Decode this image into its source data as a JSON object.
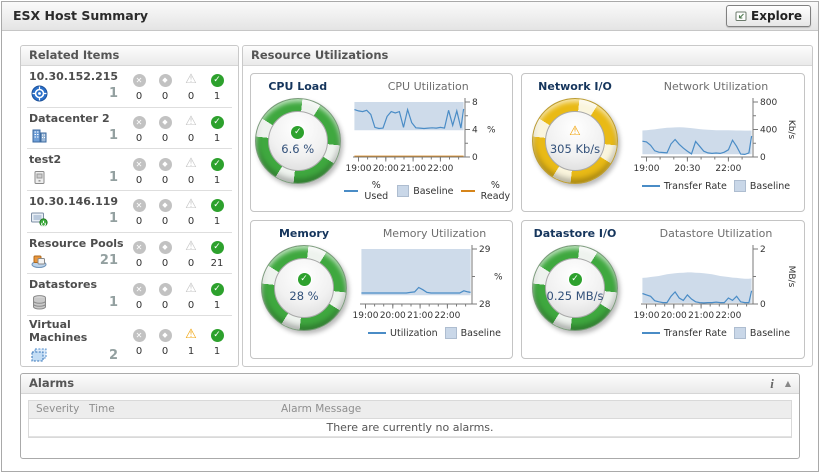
{
  "header": {
    "title": "ESX Host Summary",
    "explore_label": "Explore"
  },
  "icons": {
    "fatal": "✕",
    "critical": "◆",
    "warning": "⚠",
    "normal": "✓",
    "info": "i",
    "collapse": "▲"
  },
  "related_items": {
    "title": "Related Items",
    "items": [
      {
        "label": "10.30.152.215",
        "icon": "vcenter-server-icon",
        "count": "1",
        "fatal": "0",
        "critical": "0",
        "warning": "0",
        "normal": "1"
      },
      {
        "label": "Datacenter 2",
        "icon": "datacenter-icon",
        "count": "1",
        "fatal": "0",
        "critical": "0",
        "warning": "0",
        "normal": "1"
      },
      {
        "label": "test2",
        "icon": "cluster-icon",
        "count": "1",
        "fatal": "0",
        "critical": "0",
        "warning": "0",
        "normal": "1"
      },
      {
        "label": "10.30.146.119",
        "icon": "esx-host-icon",
        "count": "1",
        "fatal": "0",
        "critical": "0",
        "warning": "0",
        "normal": "1"
      },
      {
        "label": "Resource Pools",
        "icon": "resource-pool-icon",
        "count": "21",
        "fatal": "0",
        "critical": "0",
        "warning": "0",
        "normal": "21"
      },
      {
        "label": "Datastores",
        "icon": "datastore-icon",
        "count": "1",
        "fatal": "0",
        "critical": "0",
        "warning": "0",
        "normal": "1"
      },
      {
        "label": "Virtual Machines",
        "icon": "virtual-machine-icon",
        "count": "2",
        "fatal": "0",
        "critical": "0",
        "warning": "1",
        "normal": "1"
      }
    ]
  },
  "resource": {
    "title": "Resource Utilizations",
    "tiles": [
      {
        "title": "CPU Load",
        "gauge_value": "6.6 %",
        "gauge_state": "normal",
        "gauge_color": "#3fa83f"
      },
      {
        "title": "Network I/O",
        "gauge_value": "305 Kb/s",
        "gauge_state": "warning",
        "gauge_color": "#e9ba16"
      },
      {
        "title": "Memory",
        "gauge_value": "28 %",
        "gauge_state": "normal",
        "gauge_color": "#3fa83f"
      },
      {
        "title": "Datastore I/O",
        "gauge_value": "0.25 MB/s",
        "gauge_state": "normal",
        "gauge_color": "#3fa83f"
      }
    ]
  },
  "alarms": {
    "title": "Alarms",
    "columns": [
      "Severity",
      "Time",
      "Alarm Message"
    ],
    "empty_message": "There are currently no alarms."
  },
  "chart_data": [
    {
      "type": "line",
      "title": "CPU Utilization",
      "x_range": [
        18.8,
        22.9
      ],
      "ylim": [
        0,
        8
      ],
      "unit": "%",
      "unit_rotated": false,
      "unit_at": 4,
      "x": [
        18.85,
        19.0,
        19.15,
        19.3,
        19.45,
        19.6,
        19.75,
        19.9,
        20.05,
        20.2,
        20.35,
        20.5,
        20.65,
        20.8,
        20.95,
        21.1,
        21.25,
        21.4,
        21.55,
        21.7,
        21.85,
        22.0,
        22.15,
        22.3,
        22.45,
        22.6,
        22.75,
        22.85
      ],
      "series": [
        {
          "name": "% Used",
          "color": "#4a8cc6",
          "values": [
            6.9,
            6.7,
            6.6,
            6.8,
            6.2,
            4.3,
            4.15,
            4.2,
            5.9,
            6.6,
            6.4,
            6.6,
            4.3,
            6.9,
            5.0,
            4.25,
            4.2,
            4.15,
            4.2,
            4.25,
            4.2,
            4.3,
            4.2,
            6.8,
            4.6,
            6.7,
            4.2,
            7.0
          ]
        },
        {
          "name": "% Ready",
          "color": "#d6851a",
          "values": 0.12
        }
      ],
      "baseline": {
        "label": "Baseline",
        "color": "#c9d7e8",
        "lower": 3.9,
        "upper": 8
      },
      "yticks": [
        {
          "v": 0,
          "label": "0"
        },
        {
          "v": 2,
          "label": ""
        },
        {
          "v": 4,
          "label": "4"
        },
        {
          "v": 6,
          "label": ""
        },
        {
          "v": 8,
          "label": "8"
        }
      ],
      "xticks": [
        {
          "v": 19,
          "label": "19:00"
        },
        {
          "v": 20,
          "label": "20:00"
        },
        {
          "v": 21,
          "label": "21:00"
        },
        {
          "v": 22,
          "label": "22:00"
        }
      ],
      "x_minor_step": 0.33333,
      "legend": [
        {
          "label": "% Used",
          "type": "line",
          "color": "#4a8cc6"
        },
        {
          "label": "Baseline",
          "type": "band",
          "color": "#c9d7e8"
        },
        {
          "label": "% Ready",
          "type": "line",
          "color": "#d6851a"
        }
      ]
    },
    {
      "type": "line",
      "title": "Network Utilization",
      "x_range": [
        18.8,
        22.9
      ],
      "ylim": [
        0,
        800
      ],
      "unit": "Kb/s",
      "unit_rotated": true,
      "x": [
        18.85,
        19.0,
        19.15,
        19.3,
        19.45,
        19.6,
        19.75,
        19.9,
        20.05,
        20.2,
        20.35,
        20.5,
        20.65,
        20.8,
        20.95,
        21.1,
        21.25,
        21.4,
        21.55,
        21.7,
        21.85,
        22.0,
        22.15,
        22.3,
        22.45,
        22.6,
        22.75,
        22.85
      ],
      "series": [
        {
          "name": "Transfer Rate",
          "color": "#4a8cc6",
          "values": [
            230,
            220,
            170,
            90,
            70,
            65,
            60,
            190,
            255,
            185,
            130,
            85,
            45,
            225,
            155,
            85,
            60,
            52,
            58,
            52,
            70,
            105,
            245,
            155,
            42,
            38,
            60,
            305
          ]
        }
      ],
      "baseline": {
        "label": "Baseline",
        "color": "#c9d7e8",
        "lower": 40,
        "upper": [
          385,
          390,
          396,
          402,
          410,
          418,
          424,
          428,
          431,
          432,
          430,
          426,
          420,
          413,
          406,
          400,
          396,
          392,
          390,
          389,
          388,
          388,
          387,
          386,
          385,
          384,
          384,
          386
        ]
      },
      "yticks": [
        {
          "v": 0,
          "label": "0"
        },
        {
          "v": 200,
          "label": ""
        },
        {
          "v": 400,
          "label": "400"
        },
        {
          "v": 600,
          "label": ""
        },
        {
          "v": 800,
          "label": "800"
        }
      ],
      "xticks": [
        {
          "v": 19,
          "label": "19:00"
        },
        {
          "v": 20.5,
          "label": "20:30"
        },
        {
          "v": 22,
          "label": "22:00"
        }
      ],
      "x_minor_step": 0.5,
      "legend": [
        {
          "label": "Transfer Rate",
          "type": "line",
          "color": "#4a8cc6"
        },
        {
          "label": "Baseline",
          "type": "band",
          "color": "#c9d7e8"
        }
      ]
    },
    {
      "type": "line",
      "title": "Memory Utilization",
      "x_range": [
        18.8,
        22.9
      ],
      "ylim": [
        28,
        29
      ],
      "unit": "%",
      "unit_rotated": false,
      "unit_at": 28.5,
      "x": [
        18.85,
        19.0,
        19.15,
        19.3,
        19.45,
        19.6,
        19.75,
        19.9,
        20.05,
        20.2,
        20.35,
        20.5,
        20.65,
        20.8,
        20.95,
        21.1,
        21.25,
        21.4,
        21.55,
        21.7,
        21.85,
        22.0,
        22.15,
        22.3,
        22.45,
        22.6,
        22.75,
        22.85
      ],
      "series": [
        {
          "name": "Utilization",
          "color": "#4a8cc6",
          "values": [
            28.2,
            28.2,
            28.2,
            28.2,
            28.2,
            28.2,
            28.2,
            28.2,
            28.2,
            28.2,
            28.2,
            28.2,
            28.21,
            28.22,
            28.3,
            28.26,
            28.21,
            28.2,
            28.2,
            28.2,
            28.2,
            28.2,
            28.2,
            28.2,
            28.2,
            28.24,
            28.22,
            28.21
          ]
        }
      ],
      "baseline": {
        "label": "Baseline",
        "color": "#c9d7e8",
        "lower": 28.16,
        "upper": 29
      },
      "yticks": [
        {
          "v": 28,
          "label": "28"
        },
        {
          "v": 28.5,
          "label": ""
        },
        {
          "v": 29,
          "label": "29"
        }
      ],
      "xticks": [
        {
          "v": 19,
          "label": "19:00"
        },
        {
          "v": 20,
          "label": "20:00"
        },
        {
          "v": 21,
          "label": "21:00"
        },
        {
          "v": 22,
          "label": "22:00"
        }
      ],
      "x_minor_step": 0.33333,
      "legend": [
        {
          "label": "Utilization",
          "type": "line",
          "color": "#4a8cc6"
        },
        {
          "label": "Baseline",
          "type": "band",
          "color": "#c9d7e8"
        }
      ]
    },
    {
      "type": "line",
      "title": "Datastore Utilization",
      "x_range": [
        18.8,
        22.9
      ],
      "ylim": [
        0,
        2
      ],
      "unit": "MB/s",
      "unit_rotated": true,
      "x": [
        18.85,
        19.0,
        19.15,
        19.3,
        19.45,
        19.6,
        19.75,
        19.9,
        20.05,
        20.2,
        20.35,
        20.5,
        20.65,
        20.8,
        20.95,
        21.1,
        21.25,
        21.4,
        21.55,
        21.7,
        21.85,
        22.0,
        22.15,
        22.3,
        22.45,
        22.6,
        22.75,
        22.85
      ],
      "series": [
        {
          "name": "Transfer Rate",
          "color": "#4a8cc6",
          "values": [
            0.38,
            0.33,
            0.28,
            0.12,
            0.08,
            0.05,
            0.05,
            0.28,
            0.44,
            0.22,
            0.13,
            0.33,
            0.18,
            0.08,
            0.05,
            0.04,
            0.05,
            0.05,
            0.07,
            0.05,
            0.05,
            0.22,
            0.13,
            0.28,
            0.08,
            0.05,
            0.05,
            0.48
          ]
        }
      ],
      "baseline": {
        "label": "Baseline",
        "color": "#c9d7e8",
        "lower": 0.04,
        "upper": [
          0.95,
          0.96,
          0.98,
          1.0,
          1.02,
          1.05,
          1.08,
          1.1,
          1.12,
          1.13,
          1.14,
          1.15,
          1.15,
          1.14,
          1.13,
          1.12,
          1.1,
          1.08,
          1.05,
          1.02,
          1.0,
          0.98,
          0.96,
          0.95,
          0.93,
          0.92,
          0.92,
          0.93
        ]
      },
      "yticks": [
        {
          "v": 0,
          "label": "0"
        },
        {
          "v": 1,
          "label": ""
        },
        {
          "v": 2,
          "label": "2"
        }
      ],
      "xticks": [
        {
          "v": 19,
          "label": "19:00"
        },
        {
          "v": 20,
          "label": "20:00"
        },
        {
          "v": 21,
          "label": "21:00"
        },
        {
          "v": 22,
          "label": "22:00"
        }
      ],
      "x_minor_step": 0.33333,
      "legend": [
        {
          "label": "Transfer Rate",
          "type": "line",
          "color": "#4a8cc6"
        },
        {
          "label": "Baseline",
          "type": "band",
          "color": "#c9d7e8"
        }
      ]
    }
  ]
}
